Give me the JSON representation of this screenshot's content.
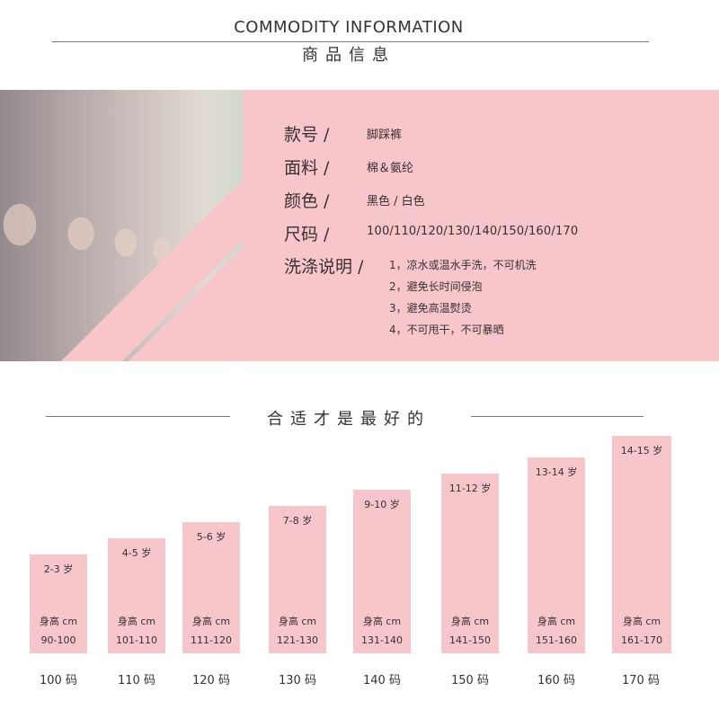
{
  "header": {
    "title_en": "COMMODITY INFORMATION",
    "title_zh": "商品信息"
  },
  "info": {
    "style_label": "款号 /",
    "style_value": "脚踩裤",
    "fabric_label": "面料 /",
    "fabric_value": "棉＆氨纶",
    "color_label": "颜色 /",
    "color_value": "黑色 / 白色",
    "size_label": "尺码 /",
    "size_value": "100/110/120/130/140/150/160/170",
    "care_label": "洗涤说明 /",
    "care_items": [
      "1，凉水或温水手洗，不可机洗",
      "2，避免长时间侵泡",
      "3，避免高温熨烫",
      "4，不可甩干，不可暴晒"
    ]
  },
  "fit": {
    "title": "合适才是最好的",
    "height_label": "身高 cm",
    "sizes": [
      {
        "age": "2-3 岁",
        "range": "90-100",
        "code": "100 码",
        "level": 1
      },
      {
        "age": "4-5 岁",
        "range": "101-110",
        "code": "110 码",
        "level": 2
      },
      {
        "age": "5-6 岁",
        "range": "111-120",
        "code": "120 码",
        "level": 3
      },
      {
        "age": "7-8 岁",
        "range": "121-130",
        "code": "130 码",
        "level": 4
      },
      {
        "age": "9-10 岁",
        "range": "131-140",
        "code": "140 码",
        "level": 5
      },
      {
        "age": "11-12 岁",
        "range": "141-150",
        "code": "150 码",
        "level": 6
      },
      {
        "age": "13-14 岁",
        "range": "151-160",
        "code": "160 码",
        "level": 7
      },
      {
        "age": "14-15 岁",
        "range": "161-170",
        "code": "170 码",
        "level": 8
      }
    ]
  },
  "colors": {
    "accent_pink": "#f7c6ca",
    "text": "#3a3030"
  }
}
